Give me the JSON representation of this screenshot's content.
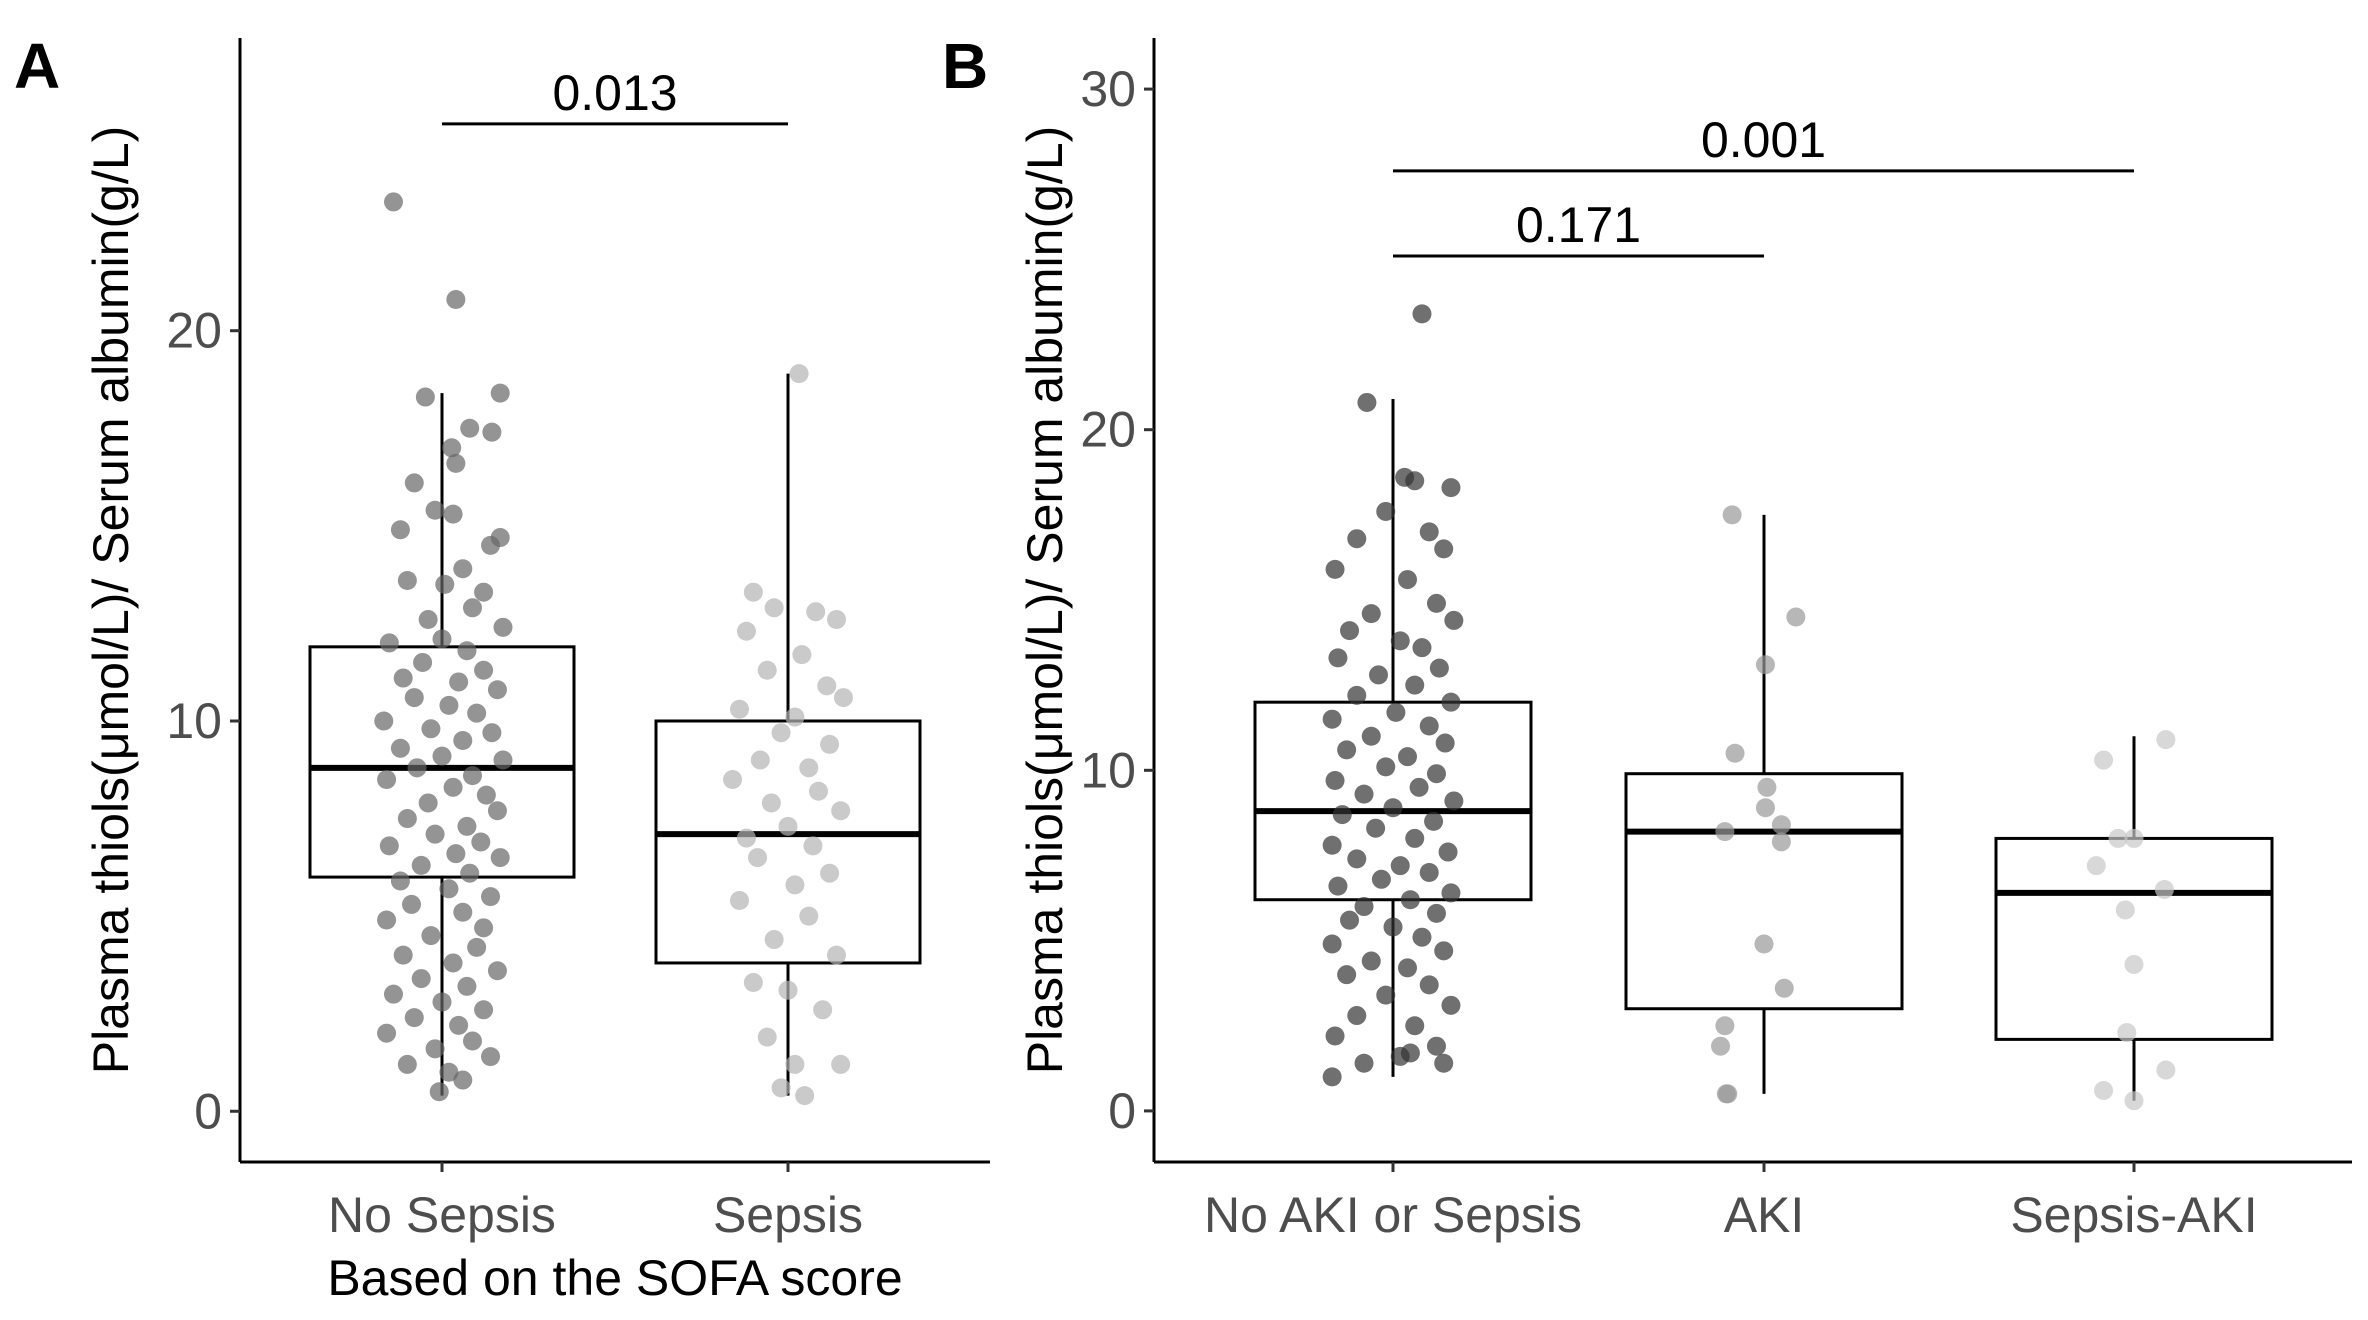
{
  "chart_data": [
    {
      "panel": "A",
      "type": "box",
      "xlabel": "Based on the SOFA score",
      "ylabel": "Plasma thiols(μmol/L)/ Serum albumin(g/L)",
      "ylim": [
        -1.3,
        27.5
      ],
      "yticks": [
        0,
        10,
        20
      ],
      "categories": [
        "No Sepsis",
        "Sepsis"
      ],
      "boxes": [
        {
          "name": "No Sepsis",
          "q1": 6.0,
          "median": 8.8,
          "q3": 11.9,
          "whisker_low": 0.4,
          "whisker_high": 18.4,
          "color": "#666666",
          "points": [
            [
              -0.35,
              23.3
            ],
            [
              0.1,
              20.8
            ],
            [
              -0.12,
              18.3
            ],
            [
              0.42,
              18.4
            ],
            [
              0.2,
              17.5
            ],
            [
              0.36,
              17.4
            ],
            [
              0.07,
              17.0
            ],
            [
              0.1,
              16.6
            ],
            [
              -0.2,
              16.1
            ],
            [
              -0.05,
              15.4
            ],
            [
              0.08,
              15.3
            ],
            [
              -0.3,
              14.9
            ],
            [
              0.42,
              14.7
            ],
            [
              0.35,
              14.5
            ],
            [
              0.15,
              13.9
            ],
            [
              -0.25,
              13.6
            ],
            [
              0.02,
              13.5
            ],
            [
              0.3,
              13.3
            ],
            [
              0.22,
              12.9
            ],
            [
              -0.1,
              12.6
            ],
            [
              0.44,
              12.4
            ],
            [
              0.0,
              12.1
            ],
            [
              -0.38,
              12.0
            ],
            [
              0.18,
              11.8
            ],
            [
              -0.14,
              11.5
            ],
            [
              0.3,
              11.3
            ],
            [
              -0.28,
              11.1
            ],
            [
              0.12,
              11.0
            ],
            [
              0.4,
              10.8
            ],
            [
              -0.2,
              10.6
            ],
            [
              0.05,
              10.4
            ],
            [
              0.25,
              10.2
            ],
            [
              -0.42,
              10.0
            ],
            [
              -0.08,
              9.8
            ],
            [
              0.36,
              9.7
            ],
            [
              0.15,
              9.5
            ],
            [
              -0.3,
              9.3
            ],
            [
              0.0,
              9.1
            ],
            [
              0.44,
              9.0
            ],
            [
              -0.18,
              8.8
            ],
            [
              0.22,
              8.6
            ],
            [
              -0.4,
              8.5
            ],
            [
              0.08,
              8.3
            ],
            [
              0.32,
              8.1
            ],
            [
              -0.1,
              7.9
            ],
            [
              0.4,
              7.7
            ],
            [
              -0.25,
              7.5
            ],
            [
              0.18,
              7.3
            ],
            [
              -0.05,
              7.1
            ],
            [
              0.28,
              6.9
            ],
            [
              -0.38,
              6.8
            ],
            [
              0.1,
              6.6
            ],
            [
              0.42,
              6.5
            ],
            [
              -0.15,
              6.3
            ],
            [
              0.2,
              6.1
            ],
            [
              -0.3,
              5.9
            ],
            [
              0.05,
              5.7
            ],
            [
              0.35,
              5.5
            ],
            [
              -0.22,
              5.3
            ],
            [
              0.15,
              5.1
            ],
            [
              -0.4,
              4.9
            ],
            [
              0.3,
              4.7
            ],
            [
              -0.08,
              4.5
            ],
            [
              0.25,
              4.2
            ],
            [
              -0.28,
              4.0
            ],
            [
              0.08,
              3.8
            ],
            [
              0.4,
              3.6
            ],
            [
              -0.15,
              3.4
            ],
            [
              0.18,
              3.2
            ],
            [
              -0.35,
              3.0
            ],
            [
              0.0,
              2.8
            ],
            [
              0.3,
              2.6
            ],
            [
              -0.2,
              2.4
            ],
            [
              0.12,
              2.2
            ],
            [
              -0.4,
              2.0
            ],
            [
              0.22,
              1.8
            ],
            [
              -0.05,
              1.6
            ],
            [
              0.35,
              1.4
            ],
            [
              -0.25,
              1.2
            ],
            [
              0.05,
              1.0
            ],
            [
              0.15,
              0.8
            ],
            [
              -0.02,
              0.5
            ]
          ]
        },
        {
          "name": "Sepsis",
          "q1": 3.8,
          "median": 7.1,
          "q3": 10.0,
          "whisker_low": 0.4,
          "whisker_high": 18.9,
          "color": "#b3b3b3",
          "points": [
            [
              0.08,
              18.9
            ],
            [
              -0.25,
              13.3
            ],
            [
              -0.1,
              12.9
            ],
            [
              0.2,
              12.8
            ],
            [
              0.35,
              12.6
            ],
            [
              -0.3,
              12.3
            ],
            [
              0.1,
              11.7
            ],
            [
              -0.15,
              11.3
            ],
            [
              0.28,
              10.9
            ],
            [
              0.4,
              10.6
            ],
            [
              -0.35,
              10.3
            ],
            [
              0.05,
              10.1
            ],
            [
              -0.05,
              9.7
            ],
            [
              0.3,
              9.4
            ],
            [
              -0.2,
              9.0
            ],
            [
              0.15,
              8.8
            ],
            [
              -0.4,
              8.5
            ],
            [
              0.22,
              8.2
            ],
            [
              -0.12,
              7.9
            ],
            [
              0.38,
              7.7
            ],
            [
              0.0,
              7.3
            ],
            [
              -0.3,
              7.0
            ],
            [
              0.18,
              6.8
            ],
            [
              -0.22,
              6.5
            ],
            [
              0.3,
              6.1
            ],
            [
              0.05,
              5.8
            ],
            [
              -0.35,
              5.4
            ],
            [
              0.15,
              5.0
            ],
            [
              -0.1,
              4.4
            ],
            [
              0.35,
              4.0
            ],
            [
              -0.25,
              3.3
            ],
            [
              0.0,
              3.1
            ],
            [
              0.25,
              2.6
            ],
            [
              -0.15,
              1.9
            ],
            [
              0.05,
              1.2
            ],
            [
              0.38,
              1.2
            ],
            [
              -0.05,
              0.6
            ],
            [
              0.12,
              0.4
            ]
          ]
        }
      ],
      "comparisons": [
        {
          "from": "No Sepsis",
          "to": "Sepsis",
          "y": 25.3,
          "label": "0.013"
        }
      ]
    },
    {
      "panel": "B",
      "type": "box",
      "xlabel": "",
      "ylabel": "Plasma thiols(μmol/L)/ Serum albumin(g/L)",
      "ylim": [
        -1.5,
        31.5
      ],
      "yticks": [
        0,
        10,
        20,
        30
      ],
      "categories": [
        "No AKI or Sepsis",
        "AKI",
        "Sepsis-AKI"
      ],
      "boxes": [
        {
          "name": "No AKI or Sepsis",
          "q1": 6.2,
          "median": 8.8,
          "q3": 12.0,
          "whisker_low": 1.0,
          "whisker_high": 20.9,
          "color": "#333333",
          "points": [
            [
              0.2,
              23.4
            ],
            [
              -0.18,
              20.8
            ],
            [
              0.08,
              18.6
            ],
            [
              0.15,
              18.5
            ],
            [
              0.4,
              18.3
            ],
            [
              -0.05,
              17.6
            ],
            [
              0.25,
              17.0
            ],
            [
              -0.25,
              16.8
            ],
            [
              0.35,
              16.5
            ],
            [
              -0.4,
              15.9
            ],
            [
              0.1,
              15.6
            ],
            [
              0.3,
              14.9
            ],
            [
              -0.15,
              14.6
            ],
            [
              0.42,
              14.4
            ],
            [
              -0.3,
              14.1
            ],
            [
              0.05,
              13.8
            ],
            [
              0.2,
              13.6
            ],
            [
              -0.38,
              13.3
            ],
            [
              0.32,
              13.0
            ],
            [
              -0.1,
              12.8
            ],
            [
              0.15,
              12.5
            ],
            [
              -0.25,
              12.2
            ],
            [
              0.4,
              12.0
            ],
            [
              0.02,
              11.7
            ],
            [
              -0.42,
              11.5
            ],
            [
              0.25,
              11.3
            ],
            [
              -0.15,
              11.0
            ],
            [
              0.36,
              10.8
            ],
            [
              -0.32,
              10.6
            ],
            [
              0.1,
              10.4
            ],
            [
              -0.05,
              10.1
            ],
            [
              0.3,
              9.9
            ],
            [
              -0.4,
              9.7
            ],
            [
              0.18,
              9.5
            ],
            [
              -0.2,
              9.3
            ],
            [
              0.42,
              9.1
            ],
            [
              0.0,
              8.9
            ],
            [
              -0.35,
              8.7
            ],
            [
              0.28,
              8.5
            ],
            [
              -0.12,
              8.3
            ],
            [
              0.15,
              8.0
            ],
            [
              -0.42,
              7.8
            ],
            [
              0.38,
              7.6
            ],
            [
              -0.25,
              7.4
            ],
            [
              0.05,
              7.2
            ],
            [
              0.25,
              7.0
            ],
            [
              -0.08,
              6.8
            ],
            [
              -0.38,
              6.6
            ],
            [
              0.4,
              6.4
            ],
            [
              0.12,
              6.2
            ],
            [
              -0.2,
              6.0
            ],
            [
              0.3,
              5.8
            ],
            [
              -0.3,
              5.6
            ],
            [
              0.0,
              5.4
            ],
            [
              0.2,
              5.1
            ],
            [
              -0.42,
              4.9
            ],
            [
              0.35,
              4.7
            ],
            [
              -0.15,
              4.4
            ],
            [
              0.1,
              4.2
            ],
            [
              -0.32,
              4.0
            ],
            [
              0.25,
              3.7
            ],
            [
              -0.05,
              3.4
            ],
            [
              0.4,
              3.1
            ],
            [
              -0.25,
              2.8
            ],
            [
              0.15,
              2.5
            ],
            [
              -0.4,
              2.2
            ],
            [
              0.3,
              1.9
            ],
            [
              0.05,
              1.6
            ],
            [
              -0.2,
              1.4
            ],
            [
              0.35,
              1.4
            ],
            [
              -0.42,
              1.0
            ],
            [
              0.12,
              1.7
            ]
          ]
        },
        {
          "name": "AKI",
          "q1": 3.0,
          "median": 8.2,
          "q3": 9.9,
          "whisker_low": 0.5,
          "whisker_high": 17.5,
          "color": "#999999",
          "points": [
            [
              -0.22,
              17.5
            ],
            [
              0.22,
              14.5
            ],
            [
              0.01,
              13.1
            ],
            [
              -0.2,
              10.5
            ],
            [
              0.02,
              9.5
            ],
            [
              0.01,
              8.9
            ],
            [
              -0.27,
              8.2
            ],
            [
              0.12,
              8.4
            ],
            [
              0.12,
              7.9
            ],
            [
              0.0,
              4.9
            ],
            [
              0.14,
              3.6
            ],
            [
              -0.27,
              2.5
            ],
            [
              -0.3,
              1.9
            ],
            [
              -0.26,
              0.5
            ],
            [
              -0.25,
              0.5
            ]
          ]
        },
        {
          "name": "Sepsis-AKI",
          "q1": 2.1,
          "median": 6.4,
          "q3": 8.0,
          "whisker_low": 0.3,
          "whisker_high": 11.0,
          "color": "#c8c8c8",
          "points": [
            [
              0.22,
              10.9
            ],
            [
              -0.21,
              10.3
            ],
            [
              -0.26,
              7.2
            ],
            [
              -0.11,
              8.0
            ],
            [
              0.0,
              8.0
            ],
            [
              -0.06,
              5.9
            ],
            [
              0.21,
              6.5
            ],
            [
              0.0,
              4.3
            ],
            [
              -0.05,
              2.3
            ],
            [
              -0.21,
              0.6
            ],
            [
              0.0,
              0.3
            ],
            [
              0.22,
              1.2
            ]
          ]
        }
      ],
      "comparisons": [
        {
          "from": "No AKI or Sepsis",
          "to": "AKI",
          "y": 25.1,
          "label": "0.171"
        },
        {
          "from": "No AKI or Sepsis",
          "to": "Sepsis-AKI",
          "y": 27.6,
          "label": "0.001"
        }
      ]
    }
  ]
}
